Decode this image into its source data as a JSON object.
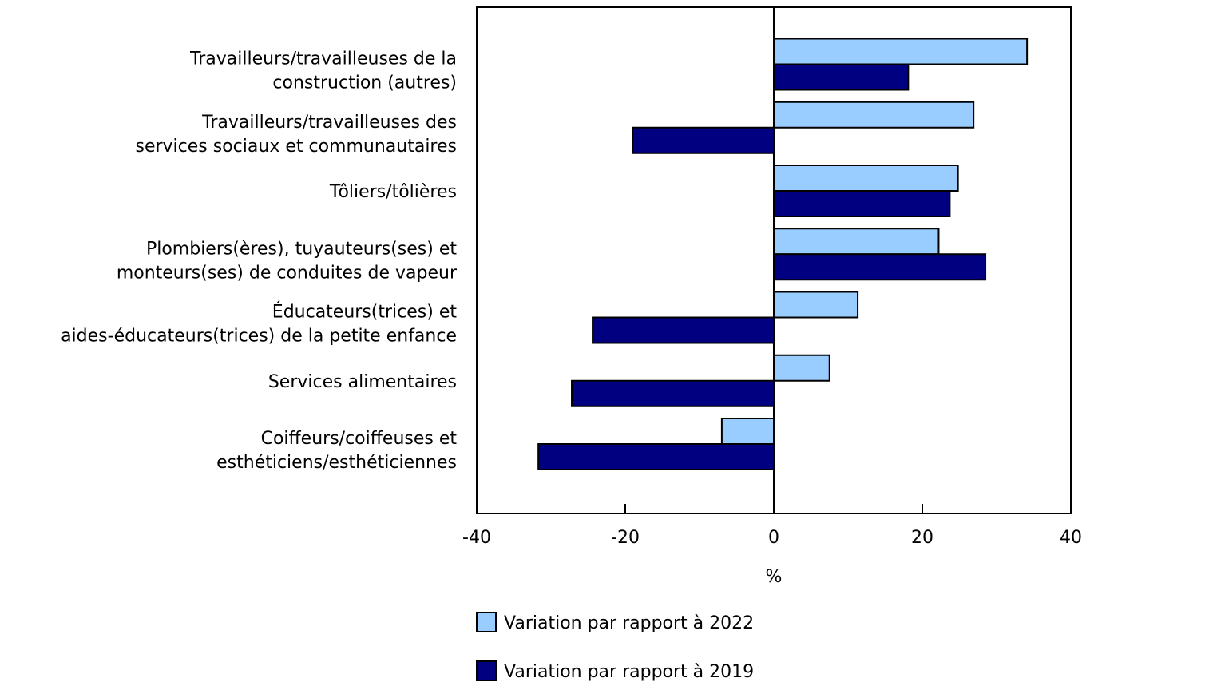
{
  "chart_data": {
    "type": "bar",
    "orientation": "horizontal",
    "categories": [
      [
        "Travailleurs/travailleuses de la",
        "construction (autres)"
      ],
      [
        "Travailleurs/travailleuses des",
        "services sociaux et communautaires"
      ],
      [
        "Tôliers/tôlières"
      ],
      [
        "Plombiers(ères), tuyauteurs(ses) et",
        "monteurs(ses) de conduites de vapeur"
      ],
      [
        "Éducateurs(trices) et",
        "aides-éducateurs(trices) de la petite enfance"
      ],
      [
        "Services alimentaires"
      ],
      [
        "Coiffeurs/coiffeuses et",
        "esthéticiens/esthéticiennes"
      ]
    ],
    "series": [
      {
        "name": "Variation par rapport à 2022",
        "color": "#99ccff",
        "values": [
          34.1,
          26.9,
          24.8,
          22.2,
          11.3,
          7.5,
          -7.0
        ]
      },
      {
        "name": "Variation par rapport à 2019",
        "color": "#000080",
        "values": [
          18.1,
          -19.0,
          23.7,
          28.5,
          -24.4,
          -27.2,
          -31.7
        ]
      }
    ],
    "xlabel": "%",
    "xlim": [
      -40,
      40
    ],
    "xticks": [
      "-40",
      "-20",
      "0",
      "20",
      "40"
    ],
    "grid": false,
    "legend_position": "bottom"
  }
}
